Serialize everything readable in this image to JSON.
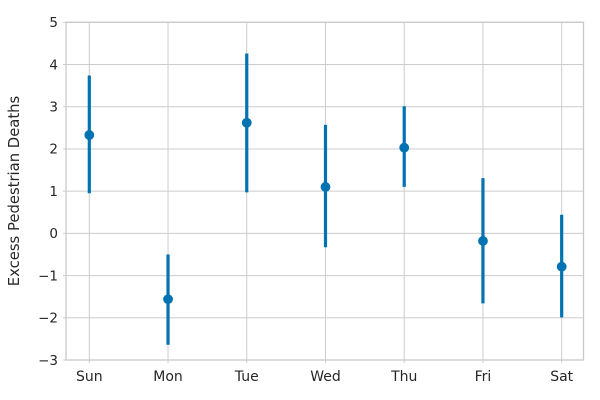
{
  "chart_data": {
    "type": "scatter",
    "variant": "point-estimates-with-vertical-error-bars",
    "title": "",
    "xlabel": "",
    "ylabel": "Excess Pedestrian Deaths",
    "categories": [
      "Sun",
      "Mon",
      "Tue",
      "Wed",
      "Thu",
      "Fri",
      "Sat"
    ],
    "series": [
      {
        "name": "excess-pedestrian-deaths",
        "values": [
          2.33,
          -1.56,
          2.62,
          1.1,
          2.03,
          -0.18,
          -0.79
        ],
        "error_low": [
          0.95,
          -2.64,
          0.97,
          -0.33,
          1.1,
          -1.66,
          -1.99
        ],
        "error_high": [
          3.74,
          -0.5,
          4.26,
          2.57,
          3.01,
          1.31,
          0.44
        ]
      }
    ],
    "yticks": [
      5,
      4,
      3,
      2,
      1,
      0,
      -1,
      -2,
      -3
    ],
    "ytick_labels": [
      "5",
      "4",
      "3",
      "2",
      "1",
      "0",
      "−1",
      "−2",
      "−3"
    ],
    "ylim": [
      -3,
      5
    ],
    "grid": true,
    "legend_position": "none",
    "colors": {
      "point": "#0173b2",
      "grid": "#cccccc",
      "spine": "#c9c9c9",
      "text": "#262626",
      "background": "#ffffff"
    }
  }
}
